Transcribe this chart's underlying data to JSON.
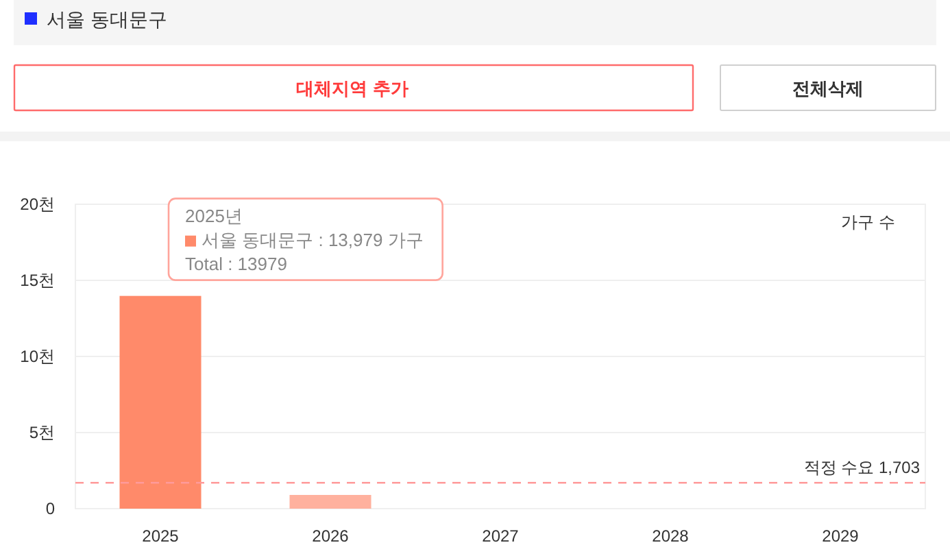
{
  "chart_data": {
    "type": "bar",
    "categories": [
      "2025",
      "2026",
      "2027",
      "2028",
      "2029"
    ],
    "values": [
      13.979,
      0.9,
      null,
      null,
      null
    ],
    "colors": [
      "#ff8a6a",
      "#ffb19e",
      null,
      null,
      null
    ],
    "ylabel": "가구 수",
    "ylim": [
      0,
      20
    ],
    "yticks": [
      0,
      {
        "value": 5,
        "label": "5천"
      },
      {
        "value": 10,
        "label": "10천"
      },
      {
        "value": 15,
        "label": "15천"
      },
      {
        "value": 20,
        "label": "20천"
      }
    ],
    "grid": "y",
    "ref_lines": [
      {
        "axis": "y",
        "value": 1.703,
        "label": "적정 수요 1,703",
        "color": "#ff9a9a",
        "line_style": "dashed"
      }
    ],
    "annotations": [
      "서울 동대문구",
      "대체지역 추가",
      "전체삭제",
      {
        "text": "2025년\n서울 동대문구 : 13,979 가구\nTotal : 13979",
        "x": "2025",
        "y": 13.979
      }
    ]
  }
}
